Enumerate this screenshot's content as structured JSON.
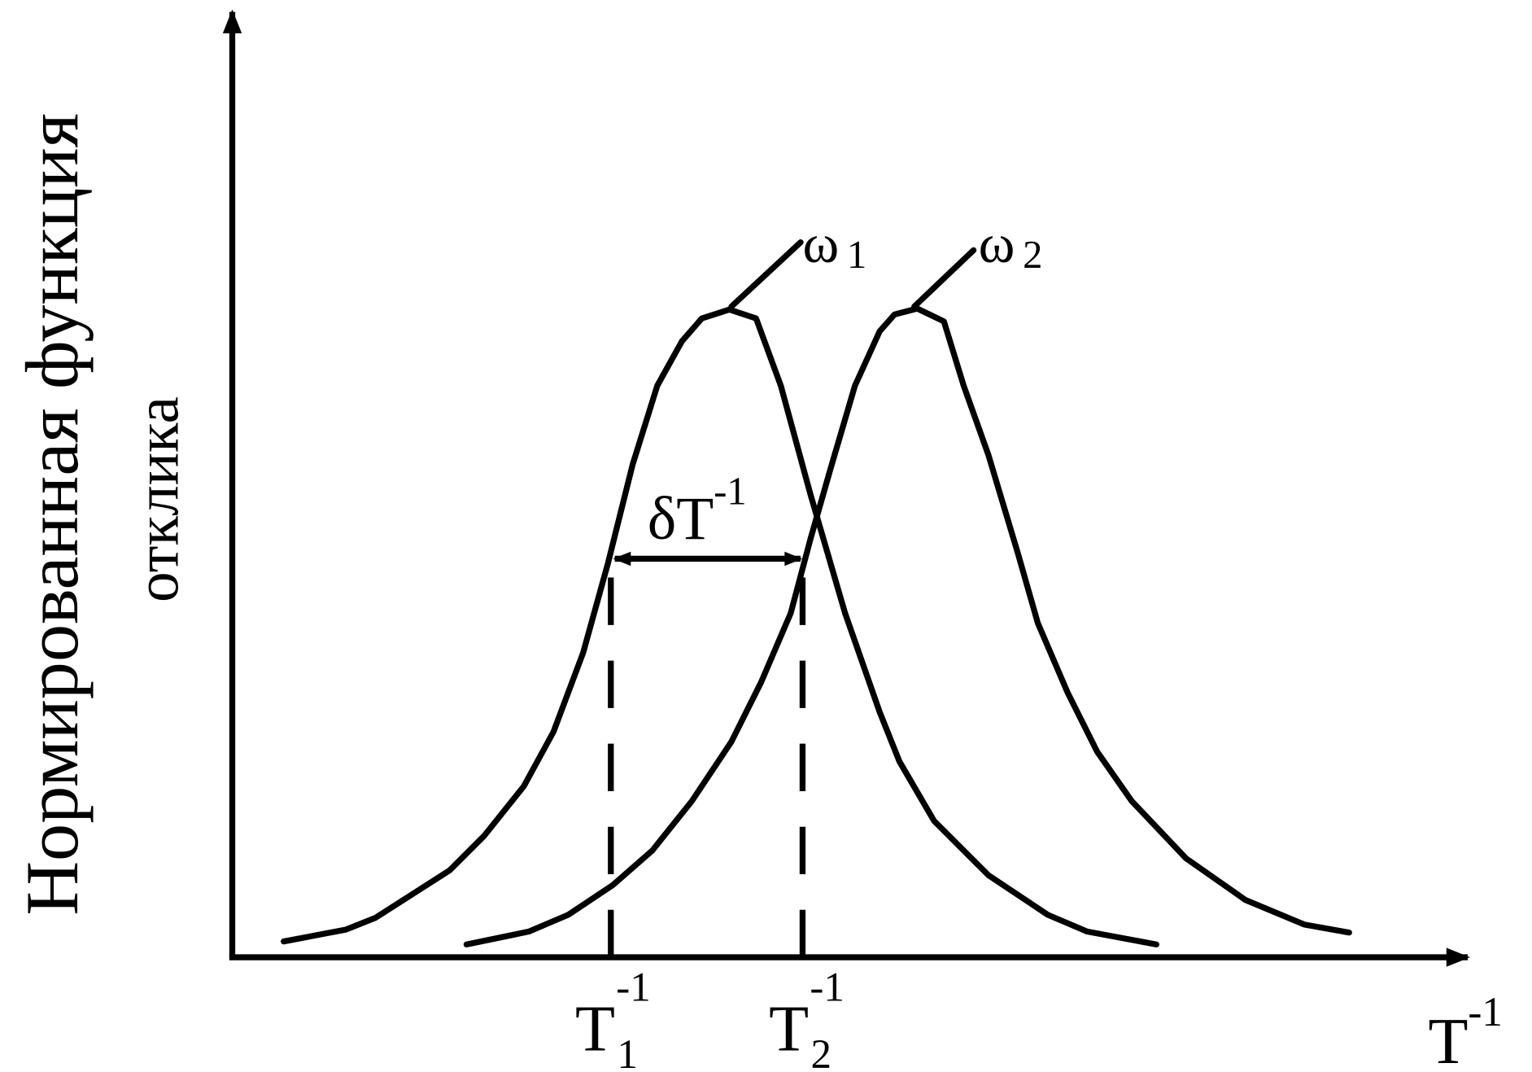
{
  "axes": {
    "y_label": [
      "Нормированная функция",
      "отклика"
    ],
    "x_label": {
      "base": "T",
      "sup": "-1"
    }
  },
  "curves": [
    {
      "label": {
        "base": "ω",
        "sub": "1"
      }
    },
    {
      "label": {
        "base": "ω",
        "sub": "2"
      }
    }
  ],
  "markers": [
    {
      "base": "T",
      "sub": "1",
      "sup": "-1"
    },
    {
      "base": "T",
      "sub": "2",
      "sup": "-1"
    }
  ],
  "interval": {
    "base": "δT",
    "sup": "-1"
  }
}
